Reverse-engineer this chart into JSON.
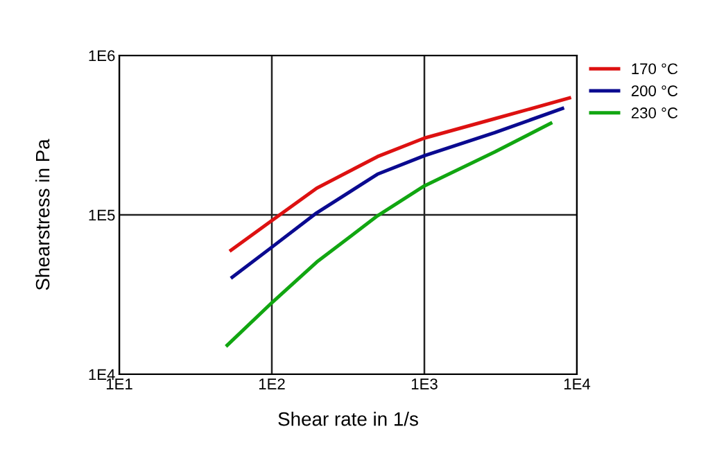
{
  "chart_data": {
    "type": "line",
    "xlabel": "Shear rate in 1/s",
    "ylabel": "Shearstress in Pa",
    "log": "xy",
    "grid": true,
    "legend": "top right",
    "xlim": [
      10,
      10000
    ],
    "xticks": [
      {
        "value": 10,
        "label": "1E1"
      },
      {
        "value": 100,
        "label": "1E2"
      },
      {
        "value": 1000,
        "label": "1E3"
      },
      {
        "value": 10000,
        "label": "1E4"
      }
    ],
    "ylim": [
      10000,
      1000000
    ],
    "yticks": [
      {
        "value": 10000,
        "label": "1E4"
      },
      {
        "value": 100000,
        "label": "1E5"
      },
      {
        "value": 1000000,
        "label": "1E6"
      }
    ],
    "series": [
      {
        "name": "170 °C",
        "color": "#dd1111",
        "x": [
          54,
          100,
          197,
          493,
          1000,
          2890,
          8930
        ],
        "values": [
          60000,
          92000,
          147000,
          232000,
          303000,
          401000,
          541000
        ]
      },
      {
        "name": "200 °C",
        "color": "#0a0a90",
        "x": [
          55,
          100,
          197,
          493,
          1000,
          2890,
          8040
        ],
        "values": [
          40600,
          62700,
          103000,
          180000,
          235000,
          328000,
          465000
        ]
      },
      {
        "name": "230 °C",
        "color": "#11a611",
        "x": [
          51,
          100,
          197,
          493,
          1000,
          2890,
          6730
        ],
        "values": [
          15200,
          28100,
          50600,
          98700,
          152000,
          248000,
          375000
        ]
      }
    ]
  }
}
